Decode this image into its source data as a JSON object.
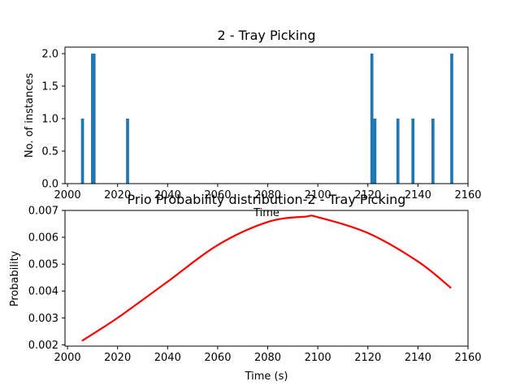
{
  "chart_data": [
    {
      "type": "bar",
      "title": "2 - Tray Picking",
      "xlabel": "Time",
      "ylabel": "No. of instances",
      "xlim": [
        1999,
        2160
      ],
      "ylim": [
        0,
        2.1
      ],
      "xticks": [
        2000,
        2020,
        2040,
        2060,
        2080,
        2100,
        2120,
        2140,
        2160
      ],
      "yticks": [
        0.0,
        0.5,
        1.0,
        1.5,
        2.0
      ],
      "bar_width": 1.2,
      "bar_color": "#1f77b4",
      "grid": false,
      "x": [
        2006,
        2010,
        2010.6,
        2024,
        2121.6,
        2122.8,
        2132,
        2138,
        2146,
        2153.5
      ],
      "values": [
        1,
        2,
        2,
        1,
        2,
        1,
        1,
        1,
        1,
        2
      ]
    },
    {
      "type": "line",
      "title": "Prio Probability distribution-2 - Tray Picking",
      "xlabel": "Time (s)",
      "ylabel": "Probability",
      "xlim": [
        1999,
        2160
      ],
      "ylim": [
        0.00195,
        0.007
      ],
      "xticks": [
        2000,
        2020,
        2040,
        2060,
        2080,
        2100,
        2120,
        2140,
        2160
      ],
      "yticks": [
        0.002,
        0.003,
        0.004,
        0.005,
        0.006,
        0.007
      ],
      "line_color": "#ff0000",
      "grid": false,
      "x": [
        2006,
        2020,
        2040,
        2060,
        2080,
        2095,
        2100,
        2120,
        2140,
        2153
      ],
      "values": [
        0.00216,
        0.003,
        0.00435,
        0.00571,
        0.00657,
        0.00677,
        0.00675,
        0.00616,
        0.0051,
        0.00413
      ]
    }
  ]
}
